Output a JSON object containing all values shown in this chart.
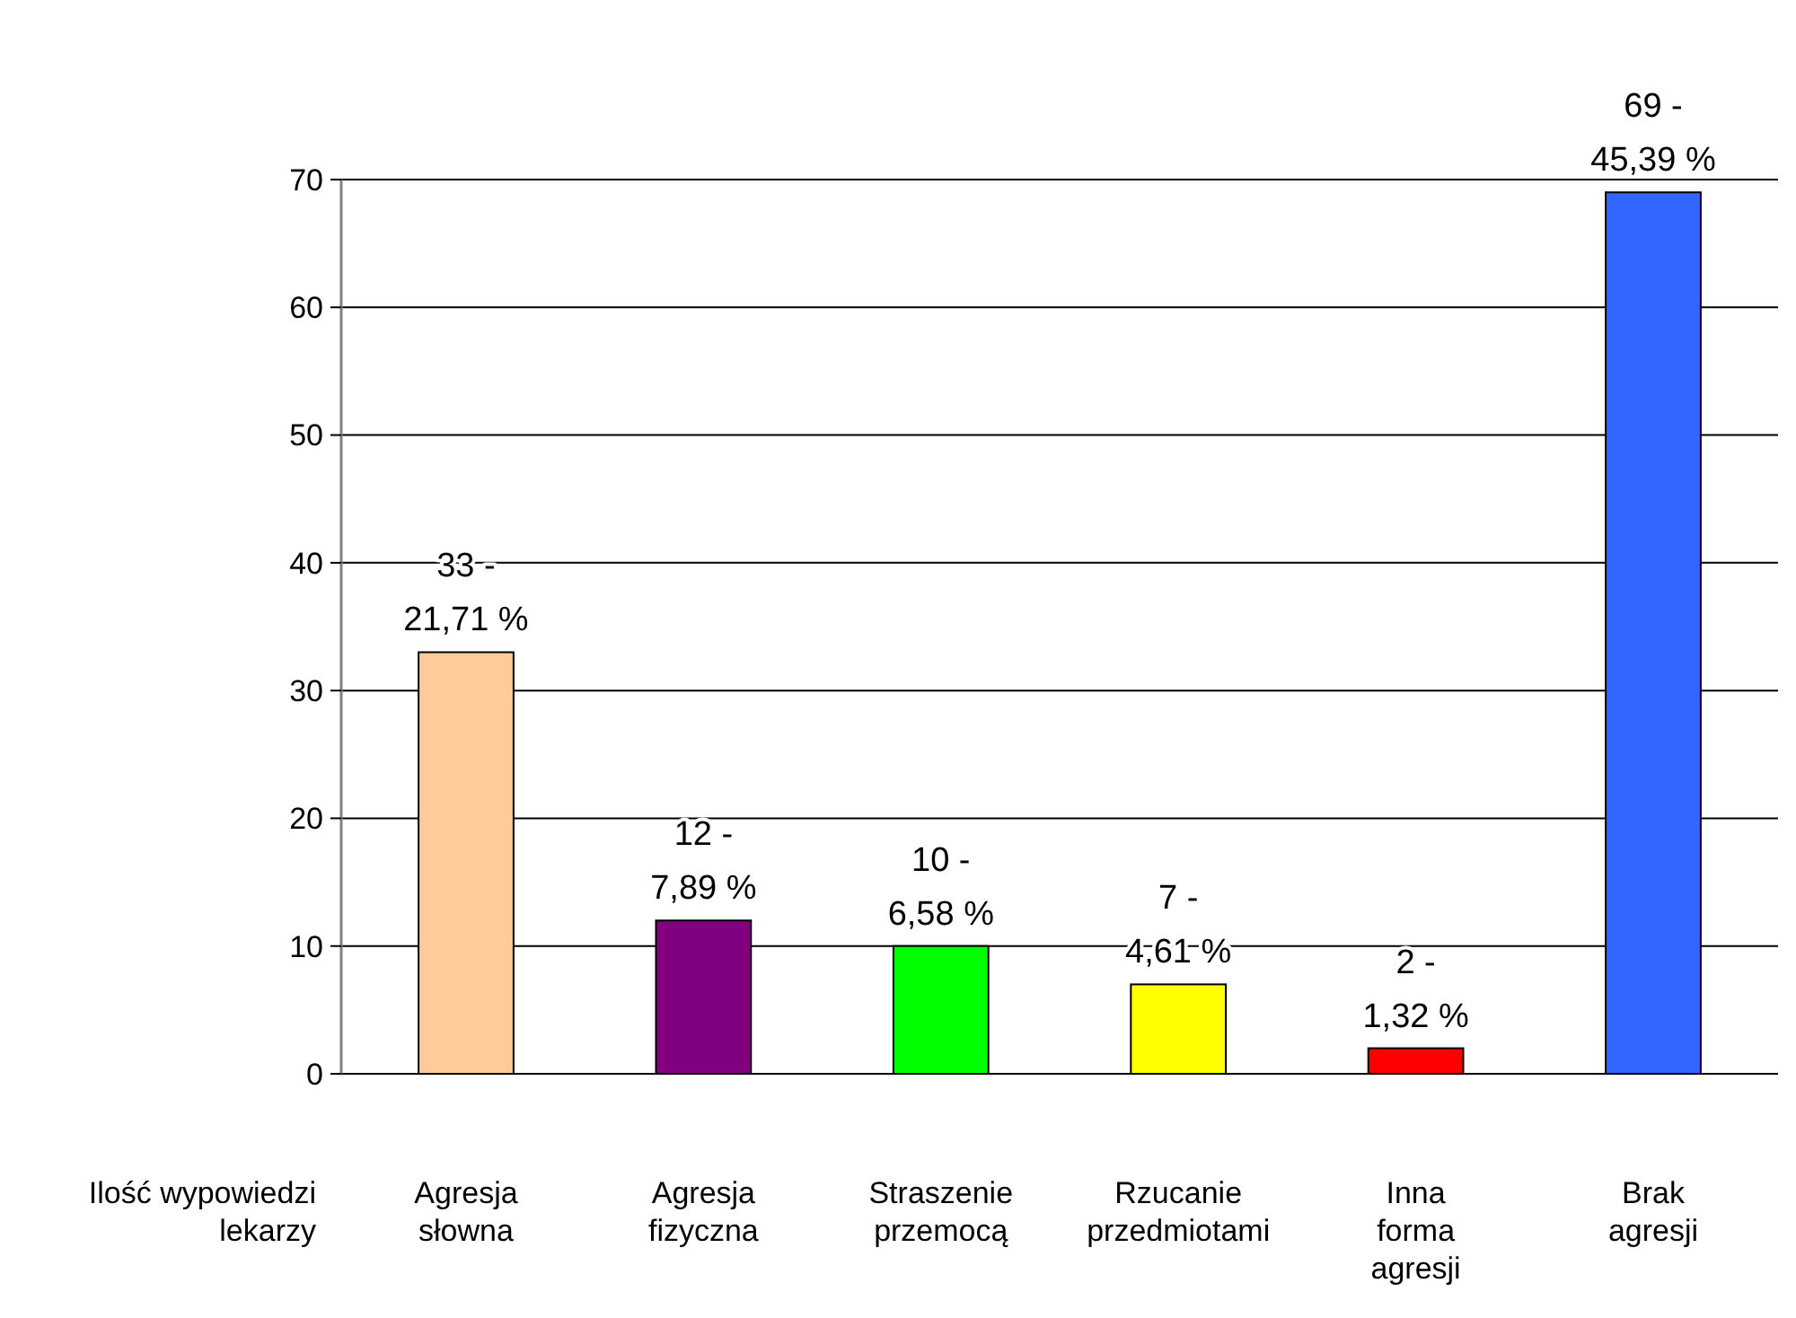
{
  "chart_data": {
    "type": "bar",
    "categories": [
      "Agresja słowna",
      "Agresja fizyczna",
      "Straszenie przemocą",
      "Rzucanie przedmiotami",
      "Inna forma agresji",
      "Brak agresji"
    ],
    "values": [
      33,
      12,
      10,
      7,
      2,
      69
    ],
    "colors": [
      "#ffcc99",
      "#800080",
      "#00ff00",
      "#ffff00",
      "#ff0000",
      "#3366ff"
    ],
    "value_labels": [
      "33 - 21,71 %",
      "12 - 7,89 %",
      "10 - 6,58 %",
      "7 - 4,61 %",
      "2 - 1,32 %",
      "69 - 45,39 %"
    ],
    "xlabel": "Ilość wypowiedzi lekarzy",
    "ylim": [
      0,
      70
    ],
    "yticks": [
      0,
      10,
      20,
      30,
      40,
      50,
      60,
      70
    ],
    "grid": "y"
  }
}
